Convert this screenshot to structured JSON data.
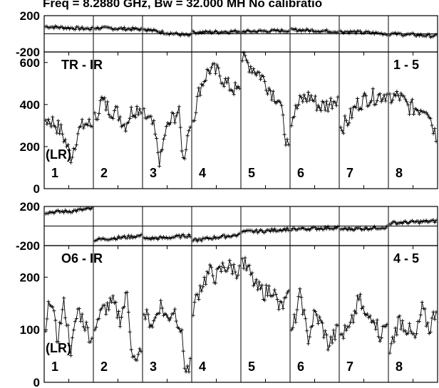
{
  "title": "Freq = 8.2880 GHz, Bw = 32.000 MH   No calibratio",
  "chart_data": {
    "type": "line",
    "title": "Freq = 8.2880 GHz, Bw = 32.000 MH   No calibratio",
    "sub_panel_labels": [
      "1",
      "2",
      "3",
      "4",
      "5",
      "6",
      "7",
      "8"
    ],
    "x_ranges": [
      [
        0,
        1
      ]
    ],
    "groups": [
      {
        "name": "TR - IR",
        "corner_label": "1 - 5",
        "side_label": "(LR)",
        "phase_ticks": [
          "200",
          "-200"
        ],
        "amp_ticks": [
          "600",
          "400",
          "200",
          "0"
        ],
        "phase_ylim": [
          -200,
          200
        ],
        "amp_ylim": [
          0,
          650
        ],
        "phase": [
          {
            "x": [
              0,
              0.5,
              1
            ],
            "y": [
              80,
              65,
              55
            ]
          },
          {
            "x": [
              0,
              0.5,
              1
            ],
            "y": [
              65,
              58,
              50
            ]
          },
          {
            "x": [
              0,
              0.5,
              1
            ],
            "y": [
              50,
              10,
              -20
            ]
          },
          {
            "x": [
              0,
              0.5,
              1
            ],
            "y": [
              15,
              20,
              28
            ]
          },
          {
            "x": [
              0,
              0.5,
              1
            ],
            "y": [
              25,
              30,
              35
            ]
          },
          {
            "x": [
              0,
              0.5,
              1
            ],
            "y": [
              45,
              35,
              25
            ]
          },
          {
            "x": [
              0,
              0.5,
              1
            ],
            "y": [
              25,
              15,
              0
            ]
          },
          {
            "x": [
              0,
              0.5,
              1
            ],
            "y": [
              0,
              -10,
              -25
            ]
          }
        ],
        "amp": [
          {
            "x": [
              0,
              0.15,
              0.35,
              0.55,
              0.7,
              0.85,
              1
            ],
            "y": [
              330,
              320,
              270,
              150,
              270,
              310,
              300
            ]
          },
          {
            "x": [
              0,
              0.15,
              0.3,
              0.5,
              0.65,
              0.8,
              1
            ],
            "y": [
              330,
              420,
              380,
              360,
              300,
              370,
              390
            ]
          },
          {
            "x": [
              0,
              0.2,
              0.35,
              0.45,
              0.6,
              0.75,
              0.85,
              1
            ],
            "y": [
              350,
              300,
              120,
              260,
              330,
              370,
              130,
              330
            ]
          },
          {
            "x": [
              0,
              0.15,
              0.35,
              0.55,
              0.75,
              1
            ],
            "y": [
              330,
              480,
              570,
              550,
              490,
              460
            ]
          },
          {
            "x": [
              0,
              0.2,
              0.4,
              0.6,
              0.8,
              1
            ],
            "y": [
              620,
              580,
              540,
              470,
              420,
              170
            ]
          },
          {
            "x": [
              0,
              0.2,
              0.4,
              0.6,
              0.8,
              1
            ],
            "y": [
              330,
              420,
              440,
              390,
              400,
              440
            ]
          },
          {
            "x": [
              0,
              0.15,
              0.35,
              0.55,
              0.8,
              1
            ],
            "y": [
              290,
              320,
              400,
              430,
              440,
              450
            ]
          },
          {
            "x": [
              0,
              0.2,
              0.4,
              0.6,
              0.8,
              1
            ],
            "y": [
              430,
              440,
              390,
              380,
              390,
              250
            ]
          }
        ]
      },
      {
        "name": "O6 - IR",
        "corner_label": "4 - 5",
        "side_label": "(LR)",
        "phase_ticks": [
          "200",
          "-200"
        ],
        "amp_ticks": [
          "200",
          "100",
          "0"
        ],
        "phase_ylim": [
          -200,
          200
        ],
        "amp_ylim": [
          0,
          260
        ],
        "phase": [
          {
            "x": [
              0,
              0.5,
              0.95
            ],
            "y": [
              140,
              150,
              175
            ]
          },
          {
            "x": [
              0,
              0.5,
              1
            ],
            "y": [
              -140,
              -120,
              -100
            ]
          },
          {
            "x": [
              0,
              0.5,
              1
            ],
            "y": [
              -130,
              -120,
              -95
            ]
          },
          {
            "x": [
              0,
              0.5,
              1
            ],
            "y": [
              -150,
              -115,
              -90
            ]
          },
          {
            "x": [
              0,
              0.5,
              1
            ],
            "y": [
              -60,
              -50,
              -30
            ]
          },
          {
            "x": [
              0,
              0.5,
              1
            ],
            "y": [
              -30,
              -25,
              -15
            ]
          },
          {
            "x": [
              0,
              0.5,
              1
            ],
            "y": [
              -30,
              -25,
              -10
            ]
          },
          {
            "x": [
              0,
              0.5,
              1
            ],
            "y": [
              30,
              40,
              50
            ]
          }
        ],
        "amp": [
          {
            "x": [
              0,
              0.1,
              0.25,
              0.4,
              0.55,
              0.7,
              0.85,
              1
            ],
            "y": [
              90,
              170,
              80,
              150,
              60,
              140,
              110,
              80
            ]
          },
          {
            "x": [
              0,
              0.2,
              0.4,
              0.55,
              0.7,
              0.8,
              0.9,
              1
            ],
            "y": [
              110,
              140,
              150,
              120,
              170,
              60,
              30,
              70
            ]
          },
          {
            "x": [
              0,
              0.2,
              0.35,
              0.5,
              0.65,
              0.8,
              0.9,
              1
            ],
            "y": [
              130,
              110,
              150,
              120,
              140,
              100,
              20,
              30
            ]
          },
          {
            "x": [
              0,
              0.15,
              0.35,
              0.5,
              0.65,
              0.8,
              1
            ],
            "y": [
              140,
              180,
              210,
              200,
              220,
              220,
              210
            ]
          },
          {
            "x": [
              0,
              0.15,
              0.3,
              0.5,
              0.65,
              0.8,
              1
            ],
            "y": [
              230,
              210,
              180,
              170,
              180,
              140,
              160
            ]
          },
          {
            "x": [
              0,
              0.2,
              0.35,
              0.5,
              0.65,
              0.8,
              1
            ],
            "y": [
              90,
              170,
              80,
              130,
              110,
              70,
              100
            ]
          },
          {
            "x": [
              0,
              0.2,
              0.4,
              0.55,
              0.7,
              0.85,
              1
            ],
            "y": [
              90,
              100,
              160,
              120,
              130,
              90,
              110
            ]
          },
          {
            "x": [
              0,
              0.2,
              0.4,
              0.55,
              0.7,
              0.85,
              1
            ],
            "y": [
              60,
              120,
              100,
              80,
              140,
              100,
              140
            ]
          }
        ]
      }
    ]
  }
}
